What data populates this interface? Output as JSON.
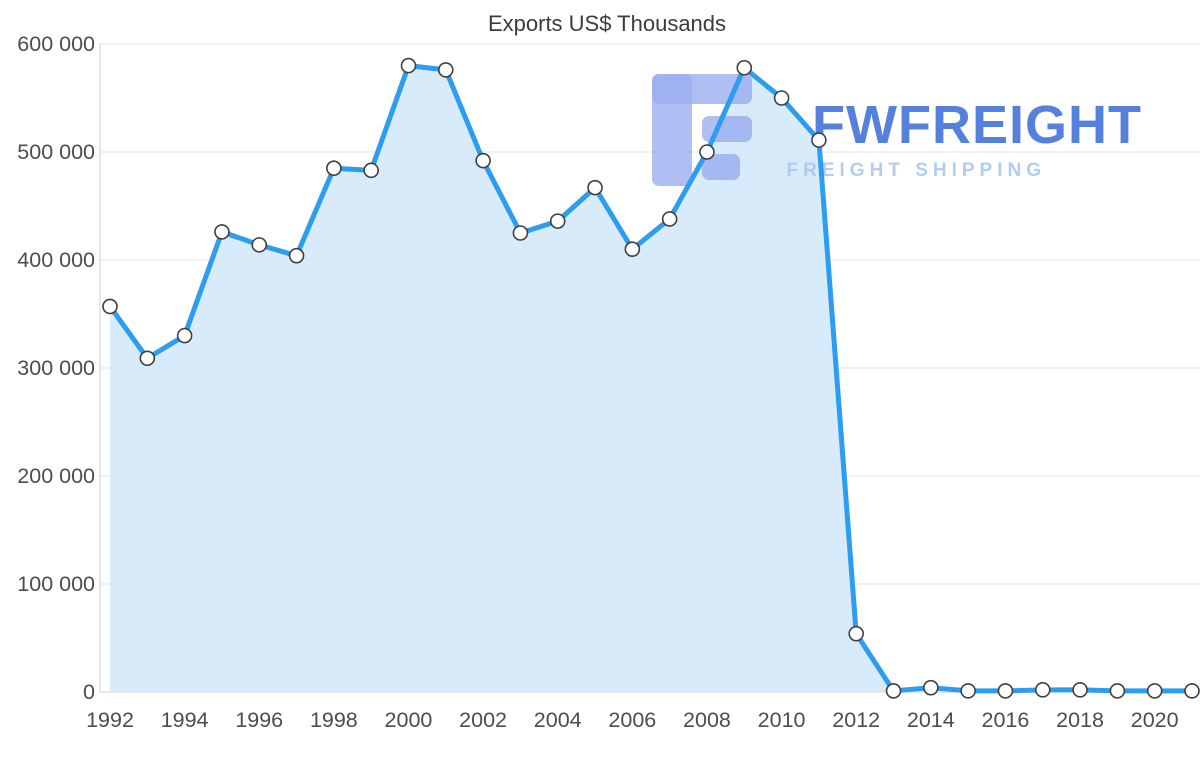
{
  "chart_data": {
    "type": "area",
    "title": "Exports US$ Thousands",
    "xlabel": "",
    "ylabel": "",
    "ylim": [
      0,
      600000
    ],
    "grid": true,
    "legend": "none",
    "marker": "circle",
    "x": [
      1992,
      1993,
      1994,
      1995,
      1996,
      1997,
      1998,
      1999,
      2000,
      2001,
      2002,
      2003,
      2004,
      2005,
      2006,
      2007,
      2008,
      2009,
      2010,
      2011,
      2012,
      2013,
      2014,
      2015,
      2016,
      2017,
      2018,
      2019,
      2020,
      2021
    ],
    "values": [
      357000,
      309000,
      330000,
      426000,
      414000,
      404000,
      485000,
      483000,
      580000,
      576000,
      492000,
      425000,
      436000,
      467000,
      410000,
      438000,
      500000,
      578000,
      550000,
      511000,
      54000,
      1000,
      4000,
      1000,
      1000,
      2000,
      2000,
      1000,
      1000,
      1000
    ],
    "x_ticks": [
      1992,
      1994,
      1996,
      1998,
      2000,
      2002,
      2004,
      2006,
      2008,
      2010,
      2012,
      2014,
      2016,
      2018,
      2020
    ],
    "y_ticks": [
      {
        "value": 0,
        "label": "0"
      },
      {
        "value": 100000,
        "label": "100 000"
      },
      {
        "value": 200000,
        "label": "200 000"
      },
      {
        "value": 300000,
        "label": "300 000"
      },
      {
        "value": 400000,
        "label": "400 000"
      },
      {
        "value": 500000,
        "label": "500 000"
      },
      {
        "value": 600000,
        "label": "600 000"
      }
    ]
  },
  "watermark": {
    "brand": "FWFREIGHT",
    "tagline": "FREIGHT SHIPPING"
  },
  "colors": {
    "line": "#2d9df0",
    "area_fill": "#d8ebfa",
    "marker_fill": "#ffffff",
    "marker_stroke": "#3f3f3f",
    "grid_line": "#e3e3e3",
    "axis_line": "#cfcfcf",
    "tick_text": "#4d4d4d",
    "title_text": "#3c3c3c",
    "watermark_brand": "#3e6fd9",
    "watermark_tagline": "#a9c6ee",
    "watermark_logo": "#8fa4ef"
  }
}
